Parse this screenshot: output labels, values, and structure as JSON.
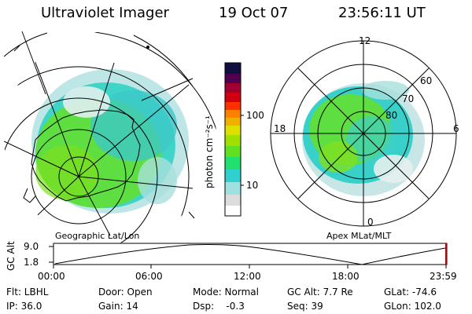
{
  "header": {
    "title": "Ultraviolet Imager",
    "date": "19 Oct 07",
    "time": "23:56:11 UT"
  },
  "left_panel": {
    "label": "Geographic Lat/Lon"
  },
  "right_panel": {
    "label": "Apex MLat/MLT",
    "mlt_labels": {
      "top": "12",
      "left": "18",
      "right": "6",
      "bottom": "0"
    },
    "mlat_labels": [
      "60",
      "70",
      "80"
    ]
  },
  "colorbar": {
    "label": "photon cm⁻²s⁻¹",
    "ticks": [
      "100",
      "10"
    ],
    "colors": [
      "#ffffff",
      "#dcdcdc",
      "#9fe0e0",
      "#30d0d0",
      "#20e070",
      "#60e020",
      "#a0e000",
      "#e0e000",
      "#f0b000",
      "#ff8000",
      "#ff3000",
      "#d00010",
      "#a00030",
      "#500050",
      "#101040"
    ]
  },
  "alt_plot": {
    "ylabel": "GC Alt",
    "yticks": [
      "9.0",
      "1.8"
    ],
    "xticks": [
      "00:00",
      "06:00",
      "12:00",
      "18:00",
      "23:59"
    ]
  },
  "info": {
    "flt": "Flt: LBHL",
    "ip": "IP: 36.0",
    "door": "Door: Open",
    "gain": "Gain: 14",
    "mode": "Mode: Normal",
    "dsp": "Dsp:    -0.3",
    "gcalt": "GC Alt: 7.7 Re",
    "seq": "Seq: 39",
    "glat": "GLat: -74.6",
    "glon": "GLon: 102.0"
  }
}
